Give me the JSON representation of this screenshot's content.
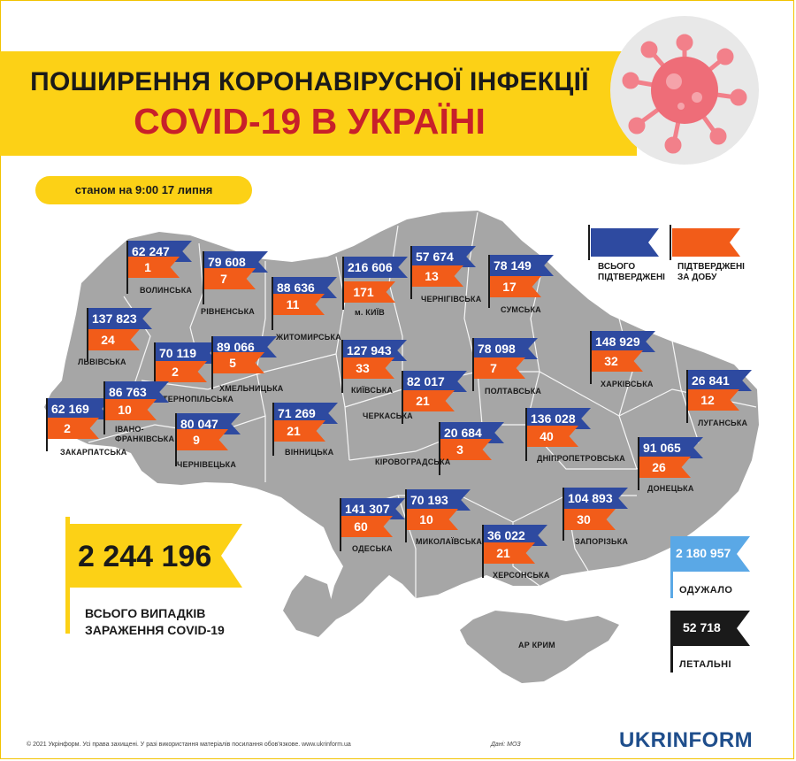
{
  "title": {
    "line1": "ПОШИРЕННЯ КОРОНАВІРУСНОЇ ІНФЕКЦІЇ",
    "line2": "COVID-19 В УКРАЇНІ"
  },
  "date_label": "станом на 9:00 17 липня",
  "legend": {
    "total_label": "ВСЬОГО\nПІДТВЕРДЖЕНІ",
    "daily_label": "ПІДТВЕРДЖЕНІ\nЗА ДОБУ"
  },
  "regions": [
    {
      "name": "ВОЛИНСЬКА",
      "total": "62 247",
      "daily": "1"
    },
    {
      "name": "РІВНЕНСЬКА",
      "total": "79 608",
      "daily": "7"
    },
    {
      "name": "ЖИТОМИРСЬКА",
      "total": "88 636",
      "daily": "11"
    },
    {
      "name": "м. КИЇВ",
      "total": "216 606",
      "daily": "171"
    },
    {
      "name": "ЧЕРНІГІВСЬКА",
      "total": "57 674",
      "daily": "13"
    },
    {
      "name": "СУМСЬКА",
      "total": "78 149",
      "daily": "17"
    },
    {
      "name": "ЛЬВІВСЬКА",
      "total": "137 823",
      "daily": "24"
    },
    {
      "name": "ТЕРНОПІЛЬСЬКА",
      "total": "70 119",
      "daily": "2"
    },
    {
      "name": "ХМЕЛЬНИЦЬКА",
      "total": "89 066",
      "daily": "5"
    },
    {
      "name": "КИЇВСЬКА",
      "total": "127 943",
      "daily": "33"
    },
    {
      "name": "ПОЛТАВСЬКА",
      "total": "78 098",
      "daily": "7"
    },
    {
      "name": "ХАРКІВСЬКА",
      "total": "148 929",
      "daily": "32"
    },
    {
      "name": "ЛУГАНСЬКА",
      "total": "26 841",
      "daily": "12"
    },
    {
      "name": "ЗАКАРПАТСЬКА",
      "total": "62 169",
      "daily": "2"
    },
    {
      "name": "ІВАНО-\nФРАНКІВСЬКА",
      "total": "86 763",
      "daily": "10"
    },
    {
      "name": "ЧЕРНІВЕЦЬКА",
      "total": "80 047",
      "daily": "9"
    },
    {
      "name": "ВІННИЦЬКА",
      "total": "71 269",
      "daily": "21"
    },
    {
      "name": "ЧЕРКАСЬКА",
      "total": "82 017",
      "daily": "21"
    },
    {
      "name": "КІРОВОГРАДСЬКА",
      "total": "20 684",
      "daily": "3"
    },
    {
      "name": "ДНІПРОПЕТРОВСЬКА",
      "total": "136 028",
      "daily": "40"
    },
    {
      "name": "ДОНЕЦЬКА",
      "total": "91 065",
      "daily": "26"
    },
    {
      "name": "ОДЕСЬКА",
      "total": "141 307",
      "daily": "60"
    },
    {
      "name": "МИКОЛАЇВСЬКА",
      "total": "70 193",
      "daily": "10"
    },
    {
      "name": "ЗАПОРІЗЬКА",
      "total": "104 893",
      "daily": "30"
    },
    {
      "name": "ХЕРСОНСЬКА",
      "total": "36 022",
      "daily": "21"
    }
  ],
  "crimea_label": "АР КРИМ",
  "total": {
    "value": "2 244 196",
    "label": "ВСЬОГО ВИПАДКІВ\nЗАРАЖЕННЯ COVID-19"
  },
  "recovered": {
    "value": "2 180 957",
    "label": "ОДУЖАЛО"
  },
  "deaths": {
    "value": "52 718",
    "label": "ЛЕТАЛЬНІ"
  },
  "footer": {
    "copyright": "© 2021 Укрінформ. Усі права захищені. У разі використання матеріалів посилання обов'язкове. www.ukrinform.ua",
    "source": "Дані: МОЗ"
  },
  "brand": "UKRINFORM",
  "colors": {
    "yellow": "#fcd116",
    "title_red": "#c8202a",
    "flag_blue": "#2e4aa0",
    "flag_orange": "#f25c19",
    "recovered_blue": "#5aa8e6",
    "map_gray": "#a6a6a6",
    "brand_blue": "#1f4e8c"
  }
}
